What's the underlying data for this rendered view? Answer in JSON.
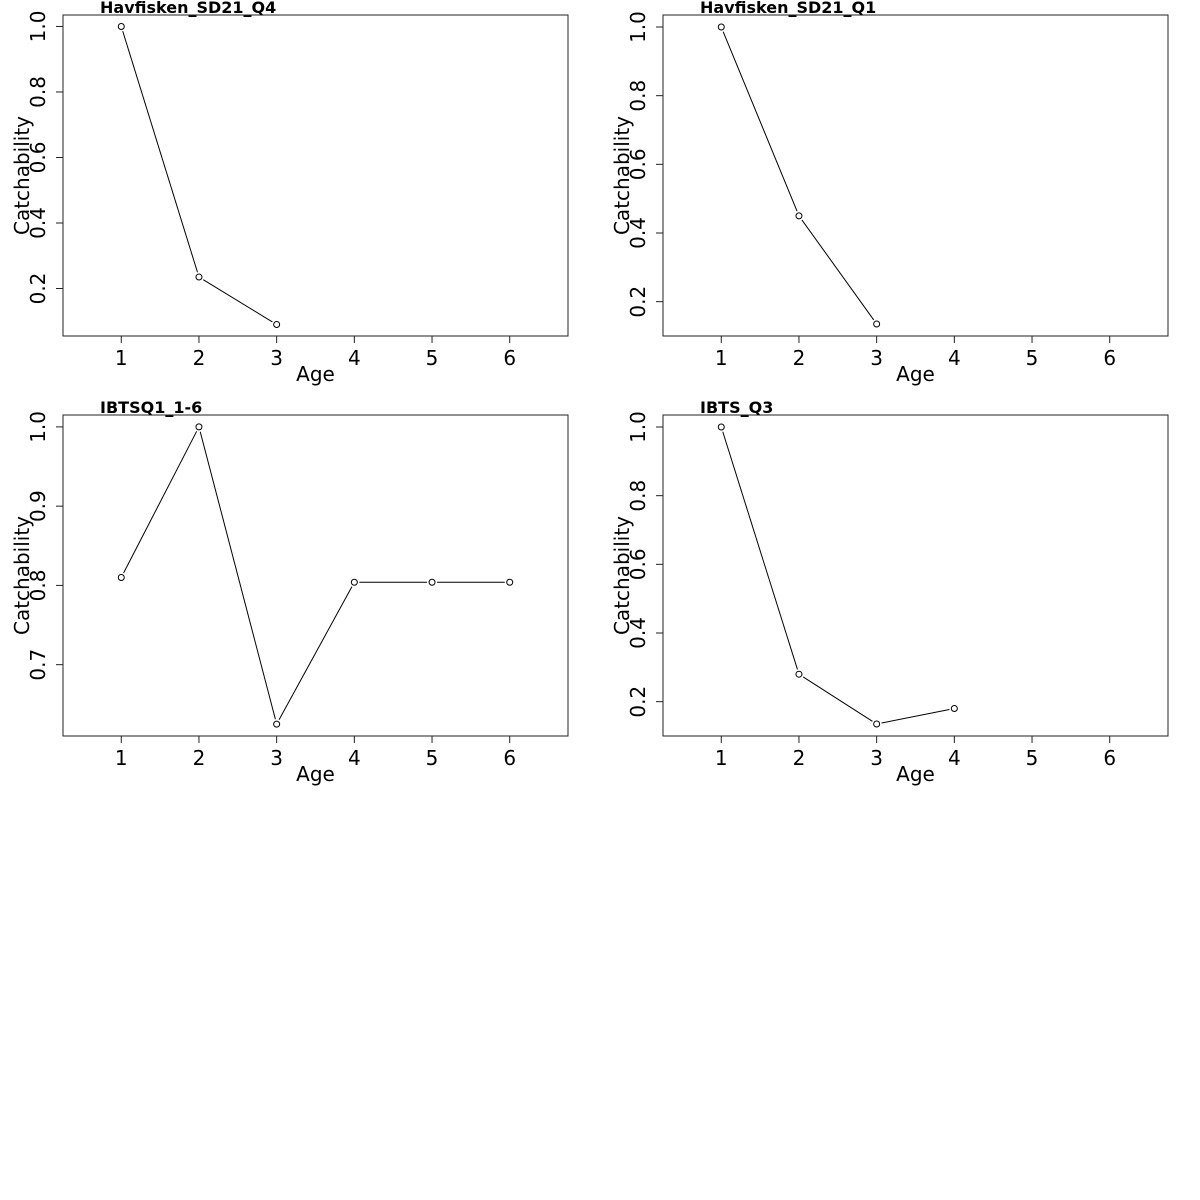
{
  "chart_data": [
    {
      "type": "line",
      "title": "Havfisken_SD21_Q4",
      "xlabel": "Age",
      "ylabel": "Catchability",
      "x": [
        1,
        2,
        3
      ],
      "values": [
        1.0,
        0.235,
        0.09
      ],
      "xlim": [
        0.25,
        6.75
      ],
      "ylim": [
        0.055,
        1.035
      ],
      "xticks": [
        1,
        2,
        3,
        4,
        5,
        6
      ],
      "yticks": [
        0.2,
        0.4,
        0.6,
        0.8,
        1.0
      ],
      "ytick_labels": [
        "0.2",
        "0.4",
        "0.6",
        "0.8",
        "1.0"
      ],
      "grid": false
    },
    {
      "type": "line",
      "title": "Havfisken_SD21_Q1",
      "xlabel": "Age",
      "ylabel": "Catchability",
      "x": [
        1,
        2,
        3
      ],
      "values": [
        1.0,
        0.45,
        0.135
      ],
      "xlim": [
        0.25,
        6.75
      ],
      "ylim": [
        0.1,
        1.035
      ],
      "xticks": [
        1,
        2,
        3,
        4,
        5,
        6
      ],
      "yticks": [
        0.2,
        0.4,
        0.6,
        0.8,
        1.0
      ],
      "ytick_labels": [
        "0.2",
        "0.4",
        "0.6",
        "0.8",
        "1.0"
      ],
      "grid": false
    },
    {
      "type": "line",
      "title": "IBTSQ1_1-6",
      "xlabel": "Age",
      "ylabel": "Catchability",
      "x": [
        1,
        2,
        3,
        4,
        5,
        6
      ],
      "values": [
        0.81,
        1.0,
        0.625,
        0.804,
        0.804,
        0.804
      ],
      "xlim": [
        0.25,
        6.75
      ],
      "ylim": [
        0.61,
        1.015
      ],
      "xticks": [
        1,
        2,
        3,
        4,
        5,
        6
      ],
      "yticks": [
        0.7,
        0.8,
        0.9,
        1.0
      ],
      "ytick_labels": [
        "0.7",
        "0.8",
        "0.9",
        "1.0"
      ],
      "grid": false
    },
    {
      "type": "line",
      "title": "IBTS_Q3",
      "xlabel": "Age",
      "ylabel": "Catchability",
      "x": [
        1,
        2,
        3,
        4
      ],
      "values": [
        1.0,
        0.28,
        0.135,
        0.18
      ],
      "xlim": [
        0.25,
        6.75
      ],
      "ylim": [
        0.1,
        1.035
      ],
      "xticks": [
        1,
        2,
        3,
        4,
        5,
        6
      ],
      "yticks": [
        0.2,
        0.4,
        0.6,
        0.8,
        1.0
      ],
      "ytick_labels": [
        "0.2",
        "0.4",
        "0.6",
        "0.8",
        "1.0"
      ],
      "grid": false
    }
  ]
}
